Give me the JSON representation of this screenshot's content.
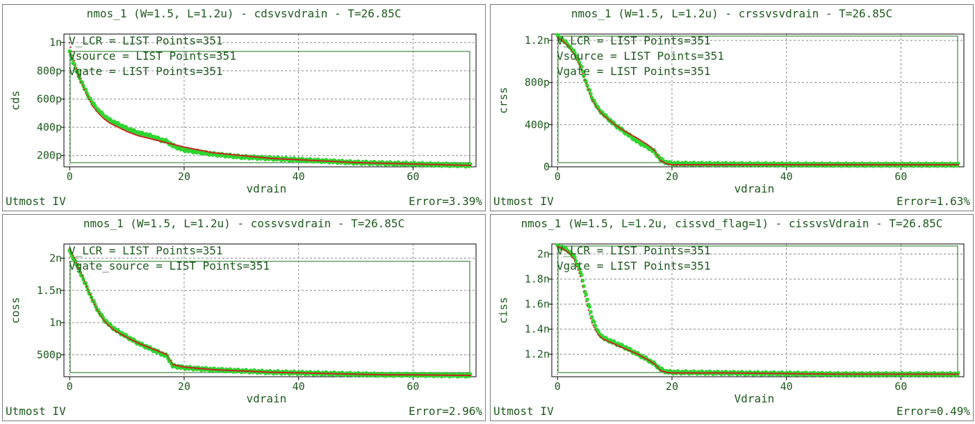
{
  "app": "Utmost IV",
  "chart_data": [
    {
      "type": "scatter",
      "title": "nmos_1 (W=1.5, L=1.2u) - cdsvsvdrain - T=26.85C",
      "xlabel": "vdrain",
      "ylabel": "cds",
      "legend": [
        "V_LCR = LIST Points=351",
        "Vsource = LIST Points=351",
        "Vgate = LIST Points=351"
      ],
      "error": "Error=3.39%",
      "xlim": [
        -1,
        71
      ],
      "ylim": [
        0.12,
        1.06
      ],
      "unit": "n",
      "xticks": [
        0,
        20,
        40,
        60
      ],
      "yticks": [
        {
          "v": 1.0,
          "label": "1n"
        },
        {
          "v": 0.8,
          "label": "800p"
        },
        {
          "v": 0.6,
          "label": "600p"
        },
        {
          "v": 0.4,
          "label": "400p"
        },
        {
          "v": 0.2,
          "label": "200p"
        }
      ],
      "series": [
        {
          "role": "measured",
          "color": "#33dd33",
          "x": [
            0,
            1,
            2,
            3,
            4,
            5,
            6,
            7,
            8,
            10,
            12,
            14,
            16,
            17,
            18,
            20,
            25,
            30,
            35,
            40,
            45,
            50,
            55,
            60,
            65,
            70
          ],
          "y": [
            0.93,
            0.82,
            0.73,
            0.64,
            0.57,
            0.52,
            0.48,
            0.45,
            0.43,
            0.39,
            0.36,
            0.34,
            0.31,
            0.3,
            0.27,
            0.24,
            0.21,
            0.19,
            0.18,
            0.17,
            0.16,
            0.15,
            0.145,
            0.14,
            0.135,
            0.13
          ]
        },
        {
          "role": "simulated",
          "color": "#cc2222",
          "x": [
            0,
            1,
            2,
            3,
            4,
            5,
            6,
            7,
            8,
            10,
            12,
            14,
            16,
            17,
            18,
            20,
            25,
            30,
            35,
            40,
            45,
            50,
            55,
            60,
            65,
            70
          ],
          "y": [
            1.0,
            0.84,
            0.72,
            0.63,
            0.55,
            0.5,
            0.46,
            0.43,
            0.41,
            0.37,
            0.34,
            0.32,
            0.3,
            0.29,
            0.28,
            0.26,
            0.22,
            0.2,
            0.18,
            0.17,
            0.16,
            0.15,
            0.145,
            0.14,
            0.135,
            0.13
          ]
        }
      ]
    },
    {
      "type": "scatter",
      "title": "nmos_1 (W=1.5, L=1.2u) - crssvsvdrain - T=26.85C",
      "xlabel": "vdrain",
      "ylabel": "crss",
      "legend": [
        "V_LCR = LIST Points=351",
        "Vsource = LIST Points=351",
        "Vgate = LIST Points=351"
      ],
      "error": "Error=1.63%",
      "xlim": [
        -1,
        71
      ],
      "ylim": [
        0,
        1.26
      ],
      "unit": "n",
      "xticks": [
        0,
        20,
        40,
        60
      ],
      "yticks": [
        {
          "v": 1.2,
          "label": "1.2n"
        },
        {
          "v": 0.8,
          "label": "800p"
        },
        {
          "v": 0.4,
          "label": "400p"
        },
        {
          "v": 0,
          "label": "0"
        }
      ],
      "series": [
        {
          "role": "measured",
          "color": "#33dd33",
          "x": [
            0,
            1,
            2,
            3,
            4,
            5,
            6,
            7,
            8,
            10,
            12,
            14,
            16,
            17,
            18,
            19,
            20,
            30,
            40,
            50,
            60,
            70
          ],
          "y": [
            1.24,
            1.2,
            1.15,
            1.08,
            0.97,
            0.8,
            0.66,
            0.56,
            0.5,
            0.4,
            0.32,
            0.24,
            0.18,
            0.14,
            0.07,
            0.04,
            0.03,
            0.025,
            0.022,
            0.02,
            0.02,
            0.02
          ]
        },
        {
          "role": "simulated",
          "color": "#cc2222",
          "x": [
            0,
            1,
            2,
            3,
            4,
            5,
            6,
            7,
            8,
            10,
            12,
            14,
            16,
            17,
            18,
            19,
            20,
            30,
            40,
            50,
            60,
            70
          ],
          "y": [
            1.23,
            1.19,
            1.14,
            1.06,
            0.95,
            0.79,
            0.64,
            0.55,
            0.49,
            0.4,
            0.33,
            0.27,
            0.2,
            0.15,
            0.06,
            0.03,
            0.02,
            0.02,
            0.02,
            0.02,
            0.02,
            0.02
          ]
        }
      ]
    },
    {
      "type": "scatter",
      "title": "nmos_1 (W=1.5, L=1.2u) - cossvsvdrain - T=26.85C",
      "xlabel": "vdrain",
      "ylabel": "coss",
      "legend": [
        "V_LCR = LIST Points=351",
        "Vgate_source = LIST Points=351"
      ],
      "error": "Error=2.96%",
      "xlim": [
        -1,
        71
      ],
      "ylim": [
        0.16,
        2.22
      ],
      "unit": "n",
      "xticks": [
        0,
        20,
        40,
        60
      ],
      "yticks": [
        {
          "v": 2.0,
          "label": "2n"
        },
        {
          "v": 1.5,
          "label": "1.5n"
        },
        {
          "v": 1.0,
          "label": "1n"
        },
        {
          "v": 0.5,
          "label": "500p"
        }
      ],
      "series": [
        {
          "role": "measured",
          "color": "#33dd33",
          "x": [
            0,
            1,
            2,
            3,
            4,
            5,
            6,
            7,
            8,
            10,
            12,
            14,
            16,
            17,
            18,
            20,
            25,
            30,
            35,
            40,
            45,
            50,
            55,
            60,
            65,
            70
          ],
          "y": [
            2.1,
            1.95,
            1.75,
            1.55,
            1.35,
            1.18,
            1.05,
            0.96,
            0.89,
            0.78,
            0.68,
            0.6,
            0.52,
            0.48,
            0.33,
            0.3,
            0.27,
            0.25,
            0.23,
            0.22,
            0.21,
            0.2,
            0.19,
            0.19,
            0.185,
            0.18
          ]
        },
        {
          "role": "simulated",
          "color": "#cc2222",
          "x": [
            0,
            1,
            2,
            3,
            4,
            5,
            6,
            7,
            8,
            10,
            12,
            14,
            16,
            17,
            18,
            20,
            25,
            30,
            35,
            40,
            45,
            50,
            55,
            60,
            65,
            70
          ],
          "y": [
            2.15,
            1.97,
            1.77,
            1.56,
            1.35,
            1.17,
            1.03,
            0.94,
            0.87,
            0.77,
            0.68,
            0.61,
            0.54,
            0.5,
            0.35,
            0.31,
            0.27,
            0.25,
            0.23,
            0.22,
            0.21,
            0.2,
            0.19,
            0.19,
            0.185,
            0.18
          ]
        }
      ]
    },
    {
      "type": "scatter",
      "title": "nmos_1 (W=1.5, L=1.2u, cissvd_flag=1) - cissvsVdrain - T=26.85C",
      "xlabel": "Vdrain",
      "ylabel": "ciss",
      "legend": [
        "V_LCR = LIST Points=351",
        "Vgate = LIST Points=351"
      ],
      "error": "Error=0.49%",
      "xlim": [
        -1,
        71
      ],
      "ylim": [
        1.02,
        2.08
      ],
      "unit": "n",
      "xticks": [
        0,
        20,
        40,
        60
      ],
      "yticks": [
        {
          "v": 2.0,
          "label": "2n"
        },
        {
          "v": 1.8,
          "label": "1.8n"
        },
        {
          "v": 1.6,
          "label": "1.6n"
        },
        {
          "v": 1.4,
          "label": "1.4n"
        },
        {
          "v": 1.2,
          "label": "1.2n"
        }
      ],
      "series": [
        {
          "role": "measured",
          "color": "#33dd33",
          "x": [
            0,
            1,
            2,
            3,
            4,
            5,
            6,
            7,
            8,
            10,
            12,
            14,
            16,
            17,
            18,
            19,
            20,
            30,
            40,
            50,
            60,
            70
          ],
          "y": [
            2.06,
            2.05,
            2.02,
            1.97,
            1.86,
            1.67,
            1.5,
            1.38,
            1.33,
            1.29,
            1.25,
            1.2,
            1.15,
            1.12,
            1.08,
            1.06,
            1.055,
            1.05,
            1.045,
            1.04,
            1.04,
            1.04
          ]
        },
        {
          "role": "simulated",
          "color": "#cc2222",
          "x": [
            0,
            1,
            2,
            3,
            4,
            5,
            6,
            7,
            8,
            10,
            12,
            14,
            16,
            17,
            18,
            19,
            20,
            30,
            40,
            50,
            60,
            70
          ],
          "y": [
            2.06,
            2.04,
            2.01,
            1.95,
            1.82,
            1.62,
            1.45,
            1.36,
            1.32,
            1.28,
            1.24,
            1.2,
            1.15,
            1.12,
            1.07,
            1.055,
            1.05,
            1.05,
            1.045,
            1.04,
            1.04,
            1.04
          ]
        }
      ]
    }
  ]
}
